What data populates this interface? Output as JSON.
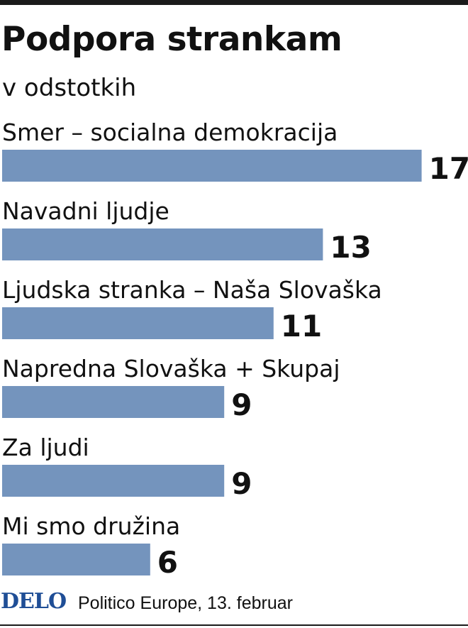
{
  "header": {
    "title": "Podpora strankam",
    "subtitle": "v odstotkih"
  },
  "chart_data": {
    "type": "bar",
    "orientation": "horizontal",
    "title": "Podpora strankam",
    "subtitle": "v odstotkih",
    "categories": [
      "Smer – socialna demokracija",
      "Navadni ljudje",
      "Ljudska stranka – Naša Slovaška",
      "Napredna Slovaška + Skupaj",
      "Za ljudi",
      "Mi smo družina"
    ],
    "values": [
      17,
      13,
      11,
      9,
      9,
      6
    ],
    "data_labels": [
      "17",
      "13",
      "11",
      "9",
      "9",
      "6"
    ],
    "grid": false,
    "legend": "none",
    "bar_color": "#7494bd"
  },
  "footer": {
    "logo": "DELO",
    "source": "Politico Europe, 13. februar",
    "logo_color": "#1f4e96"
  }
}
